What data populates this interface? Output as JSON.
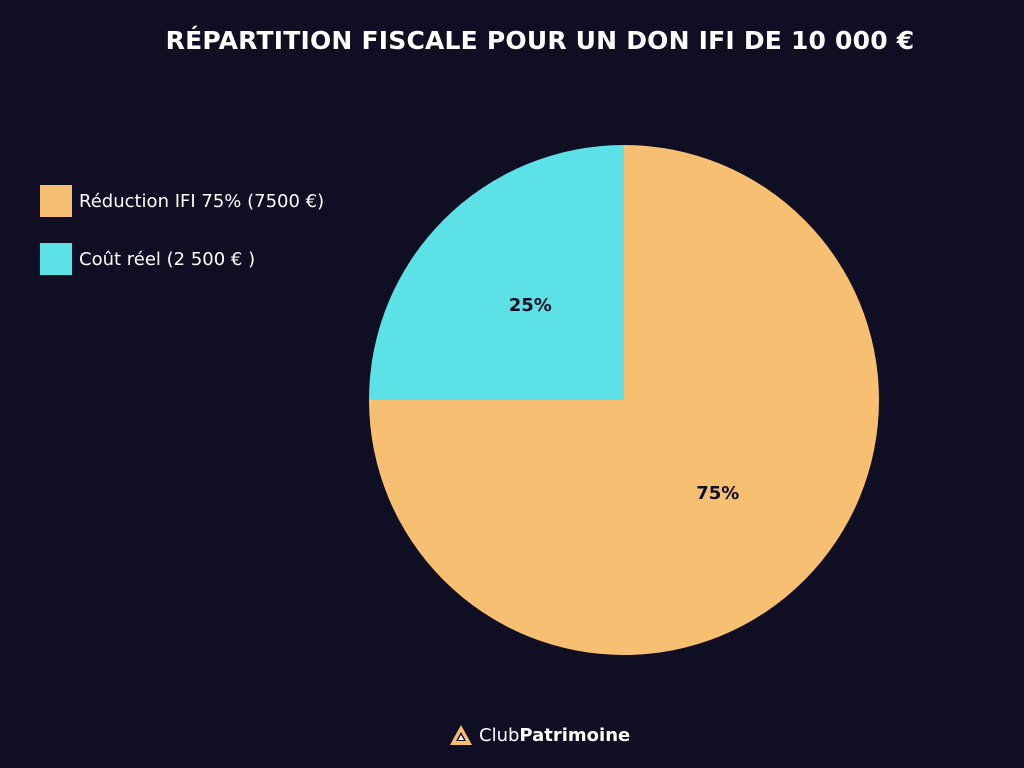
{
  "colors": {
    "background": "#0f0e23",
    "reduction": "#f7bf72",
    "cout": "#5ce1e6",
    "text": "#ffffff",
    "label_text": "#0f0e23"
  },
  "chart_data": {
    "type": "pie",
    "title": "RÉPARTITION FISCALE POUR UN DON IFI DE 10 000 €",
    "slices": [
      {
        "legend": "Réduction IFI 75% (7500 €)",
        "value": 75,
        "label": "75%",
        "color": "#f7bf72"
      },
      {
        "legend": "Coût réel (2 500 € )",
        "value": 25,
        "label": "25%",
        "color": "#5ce1e6"
      }
    ],
    "legend_position": "left"
  },
  "brand": {
    "club": "Club",
    "patrimoine": "Patrimoine",
    "logo_icon": "triangle-logo-icon"
  }
}
